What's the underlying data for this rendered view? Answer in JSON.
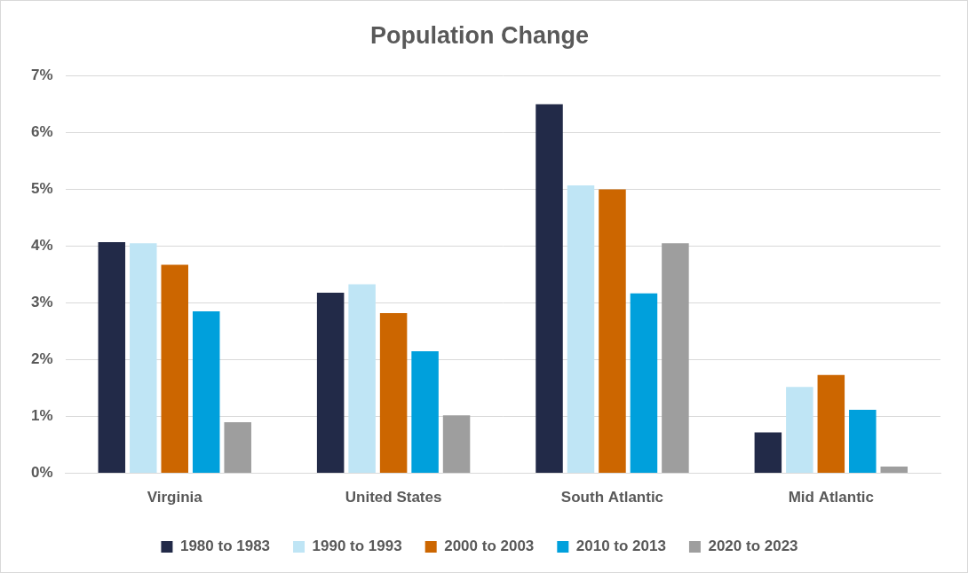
{
  "chart_data": {
    "type": "bar",
    "title": "Population Change",
    "categories": [
      "Virginia",
      "United States",
      "South Atlantic",
      "Mid Atlantic"
    ],
    "series": [
      {
        "name": "1980 to 1983",
        "color": "#222a48",
        "values": [
          4.07,
          3.18,
          6.5,
          0.72
        ]
      },
      {
        "name": "1990 to 1993",
        "color": "#bfe5f5",
        "values": [
          4.05,
          3.33,
          5.07,
          1.52
        ]
      },
      {
        "name": "2000 to 2003",
        "color": "#cc6600",
        "values": [
          3.67,
          2.82,
          5.0,
          1.73
        ]
      },
      {
        "name": "2010 to 2013",
        "color": "#00a0dc",
        "values": [
          2.85,
          2.15,
          3.17,
          1.12
        ]
      },
      {
        "name": "2020 to 2023",
        "color": "#9e9e9e",
        "values": [
          0.9,
          1.02,
          4.05,
          0.12
        ]
      }
    ],
    "ylim": [
      0,
      7
    ],
    "yticks": [
      {
        "value": 0,
        "label": "0%"
      },
      {
        "value": 1,
        "label": "1%"
      },
      {
        "value": 2,
        "label": "2%"
      },
      {
        "value": 3,
        "label": "3%"
      },
      {
        "value": 4,
        "label": "4%"
      },
      {
        "value": 5,
        "label": "5%"
      },
      {
        "value": 6,
        "label": "6%"
      },
      {
        "value": 7,
        "label": "7%"
      }
    ],
    "grid": true,
    "legend": "bottom"
  }
}
